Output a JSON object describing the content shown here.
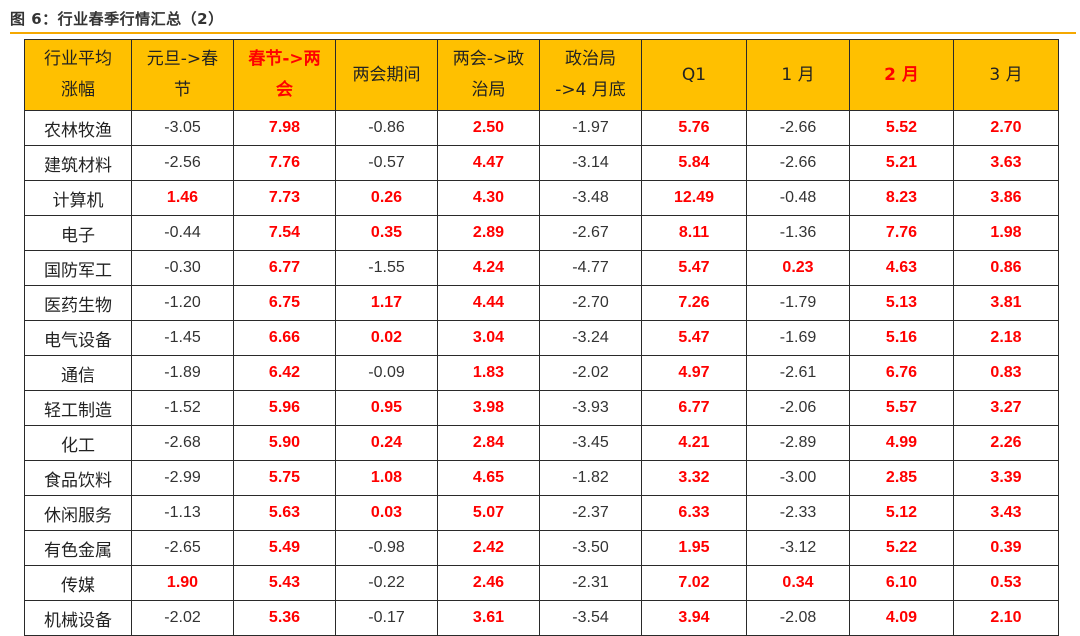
{
  "caption": "图 6：行业春季行情汇总（2）",
  "header": [
    {
      "lines": [
        "行业平均",
        "涨幅"
      ],
      "highlight": false
    },
    {
      "lines": [
        "元旦->春",
        "节"
      ],
      "highlight": false
    },
    {
      "lines": [
        "春节->两",
        "会"
      ],
      "highlight": true
    },
    {
      "lines": [
        "两会期间"
      ],
      "highlight": false
    },
    {
      "lines": [
        "两会->政",
        "治局"
      ],
      "highlight": false
    },
    {
      "lines": [
        "政治局",
        "->4 月底"
      ],
      "highlight": false
    },
    {
      "lines": [
        "Q1"
      ],
      "highlight": false
    },
    {
      "lines": [
        "1 月"
      ],
      "highlight": false
    },
    {
      "lines": [
        "2 月"
      ],
      "highlight": true
    },
    {
      "lines": [
        "3 月"
      ],
      "highlight": false
    }
  ],
  "rows": [
    {
      "industry": "农林牧渔",
      "values": [
        "-3.05",
        "7.98",
        "-0.86",
        "2.50",
        "-1.97",
        "5.76",
        "-2.66",
        "5.52",
        "2.70"
      ]
    },
    {
      "industry": "建筑材料",
      "values": [
        "-2.56",
        "7.76",
        "-0.57",
        "4.47",
        "-3.14",
        "5.84",
        "-2.66",
        "5.21",
        "3.63"
      ]
    },
    {
      "industry": "计算机",
      "values": [
        "1.46",
        "7.73",
        "0.26",
        "4.30",
        "-3.48",
        "12.49",
        "-0.48",
        "8.23",
        "3.86"
      ]
    },
    {
      "industry": "电子",
      "values": [
        "-0.44",
        "7.54",
        "0.35",
        "2.89",
        "-2.67",
        "8.11",
        "-1.36",
        "7.76",
        "1.98"
      ]
    },
    {
      "industry": "国防军工",
      "values": [
        "-0.30",
        "6.77",
        "-1.55",
        "4.24",
        "-4.77",
        "5.47",
        "0.23",
        "4.63",
        "0.86"
      ]
    },
    {
      "industry": "医药生物",
      "values": [
        "-1.20",
        "6.75",
        "1.17",
        "4.44",
        "-2.70",
        "7.26",
        "-1.79",
        "5.13",
        "3.81"
      ]
    },
    {
      "industry": "电气设备",
      "values": [
        "-1.45",
        "6.66",
        "0.02",
        "3.04",
        "-3.24",
        "5.47",
        "-1.69",
        "5.16",
        "2.18"
      ]
    },
    {
      "industry": "通信",
      "values": [
        "-1.89",
        "6.42",
        "-0.09",
        "1.83",
        "-2.02",
        "4.97",
        "-2.61",
        "6.76",
        "0.83"
      ]
    },
    {
      "industry": "轻工制造",
      "values": [
        "-1.52",
        "5.96",
        "0.95",
        "3.98",
        "-3.93",
        "6.77",
        "-2.06",
        "5.57",
        "3.27"
      ]
    },
    {
      "industry": "化工",
      "values": [
        "-2.68",
        "5.90",
        "0.24",
        "2.84",
        "-3.45",
        "4.21",
        "-2.89",
        "4.99",
        "2.26"
      ]
    },
    {
      "industry": "食品饮料",
      "values": [
        "-2.99",
        "5.75",
        "1.08",
        "4.65",
        "-1.82",
        "3.32",
        "-3.00",
        "2.85",
        "3.39"
      ]
    },
    {
      "industry": "休闲服务",
      "values": [
        "-1.13",
        "5.63",
        "0.03",
        "5.07",
        "-2.37",
        "6.33",
        "-2.33",
        "5.12",
        "3.43"
      ]
    },
    {
      "industry": "有色金属",
      "values": [
        "-2.65",
        "5.49",
        "-0.98",
        "2.42",
        "-3.50",
        "1.95",
        "-3.12",
        "5.22",
        "0.39"
      ]
    },
    {
      "industry": "传媒",
      "values": [
        "1.90",
        "5.43",
        "-0.22",
        "2.46",
        "-2.31",
        "7.02",
        "0.34",
        "6.10",
        "0.53"
      ]
    },
    {
      "industry": "机械设备",
      "values": [
        "-2.02",
        "5.36",
        "-0.17",
        "3.61",
        "-3.54",
        "3.94",
        "-2.08",
        "4.09",
        "2.10"
      ]
    }
  ],
  "colors": {
    "header_bg": "#ffc000",
    "positive": "#ff0000",
    "negative": "#333333",
    "rule": "#f5a800"
  }
}
